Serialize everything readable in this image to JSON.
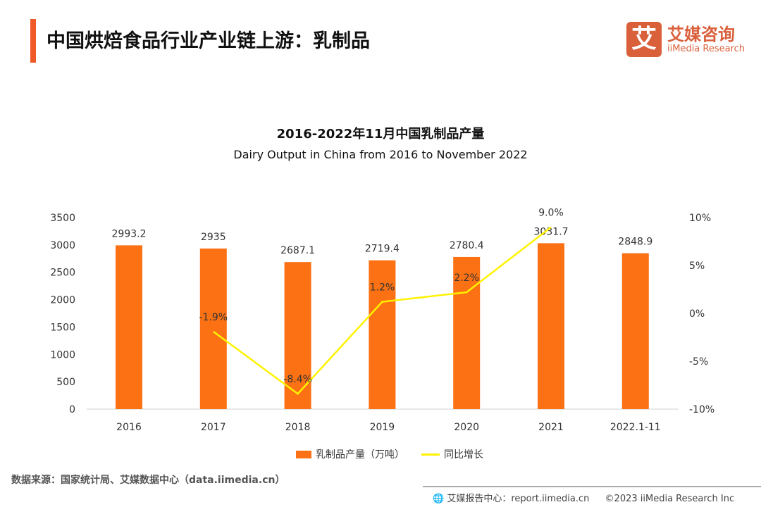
{
  "header": {
    "title": "中国烘焙食品行业产业链上游：乳制品",
    "accent": "#f05a28"
  },
  "logo": {
    "mark": "艾",
    "cn": "艾媒咨询",
    "en": "iiMedia Research"
  },
  "chart_data": {
    "type": "bar+line",
    "title": "2016-2022年11月中国乳制品产量",
    "subtitle": "Dairy Output in China from 2016 to November 2022",
    "categories": [
      "2016",
      "2017",
      "2018",
      "2019",
      "2020",
      "2021",
      "2022.1-11"
    ],
    "series": [
      {
        "name": "乳制品产量（万吨）",
        "type": "bar",
        "axis": "left",
        "color": "#fb7114",
        "values": [
          2993.2,
          2935,
          2687.1,
          2719.4,
          2780.4,
          3031.7,
          2848.9
        ],
        "labels": [
          "2993.2",
          "2935",
          "2687.1",
          "2719.4",
          "2780.4",
          "3031.7",
          "2848.9"
        ]
      },
      {
        "name": "同比增长",
        "type": "line",
        "axis": "right",
        "color": "#fff200",
        "values": [
          null,
          -1.9,
          -8.4,
          1.2,
          2.2,
          9.0,
          null
        ],
        "labels": [
          "",
          "-1.9%",
          "-8.4%",
          "1.2%",
          "2.2%",
          "9.0%",
          ""
        ]
      }
    ],
    "ylim_left": [
      0,
      3500
    ],
    "yticks_left": [
      "0",
      "500",
      "1000",
      "1500",
      "2000",
      "2500",
      "3000",
      "3500"
    ],
    "ylim_right": [
      -10,
      10
    ],
    "yticks_right": [
      "-10%",
      "-5%",
      "0%",
      "5%",
      "10%"
    ],
    "grid": false,
    "legend": "bottom"
  },
  "source": "数据来源：国家统计局、艾媒数据中心（data.iimedia.cn）",
  "footer": {
    "report": "艾媒报告中心：report.iimedia.cn",
    "copyright": "©2023 iiMedia Research  Inc"
  }
}
